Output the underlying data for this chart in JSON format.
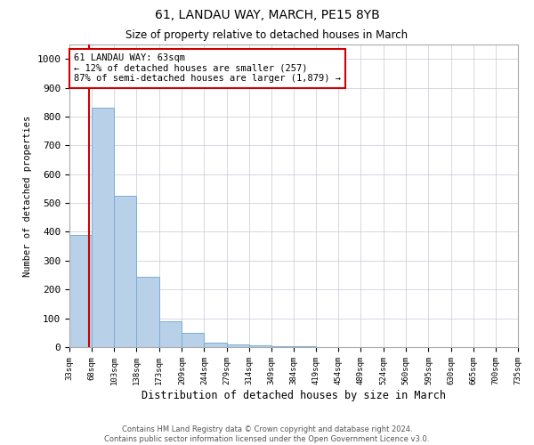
{
  "title": "61, LANDAU WAY, MARCH, PE15 8YB",
  "subtitle": "Size of property relative to detached houses in March",
  "xlabel": "Distribution of detached houses by size in March",
  "ylabel": "Number of detached properties",
  "bar_color": "#b8d0e8",
  "bar_edge_color": "#7aaed6",
  "property_line_color": "#cc0000",
  "annotation_box_color": "#cc0000",
  "background_color": "#ffffff",
  "grid_color": "#c8c8d8",
  "footnote": "Contains HM Land Registry data © Crown copyright and database right 2024.\nContains public sector information licensed under the Open Government Licence v3.0.",
  "property_size": 63,
  "annotation_line1": "61 LANDAU WAY: 63sqm",
  "annotation_line2": "← 12% of detached houses are smaller (257)",
  "annotation_line3": "87% of semi-detached houses are larger (1,879) →",
  "bin_edges": [
    33,
    68,
    103,
    138,
    173,
    209,
    244,
    279,
    314,
    349,
    384,
    419,
    454,
    489,
    524,
    560,
    595,
    630,
    665,
    700,
    735
  ],
  "bar_heights": [
    390,
    830,
    525,
    245,
    90,
    50,
    15,
    8,
    5,
    3,
    2,
    1,
    1,
    0,
    0,
    0,
    0,
    0,
    0,
    0
  ],
  "ylim": [
    0,
    1050
  ],
  "yticks": [
    0,
    100,
    200,
    300,
    400,
    500,
    600,
    700,
    800,
    900,
    1000
  ]
}
